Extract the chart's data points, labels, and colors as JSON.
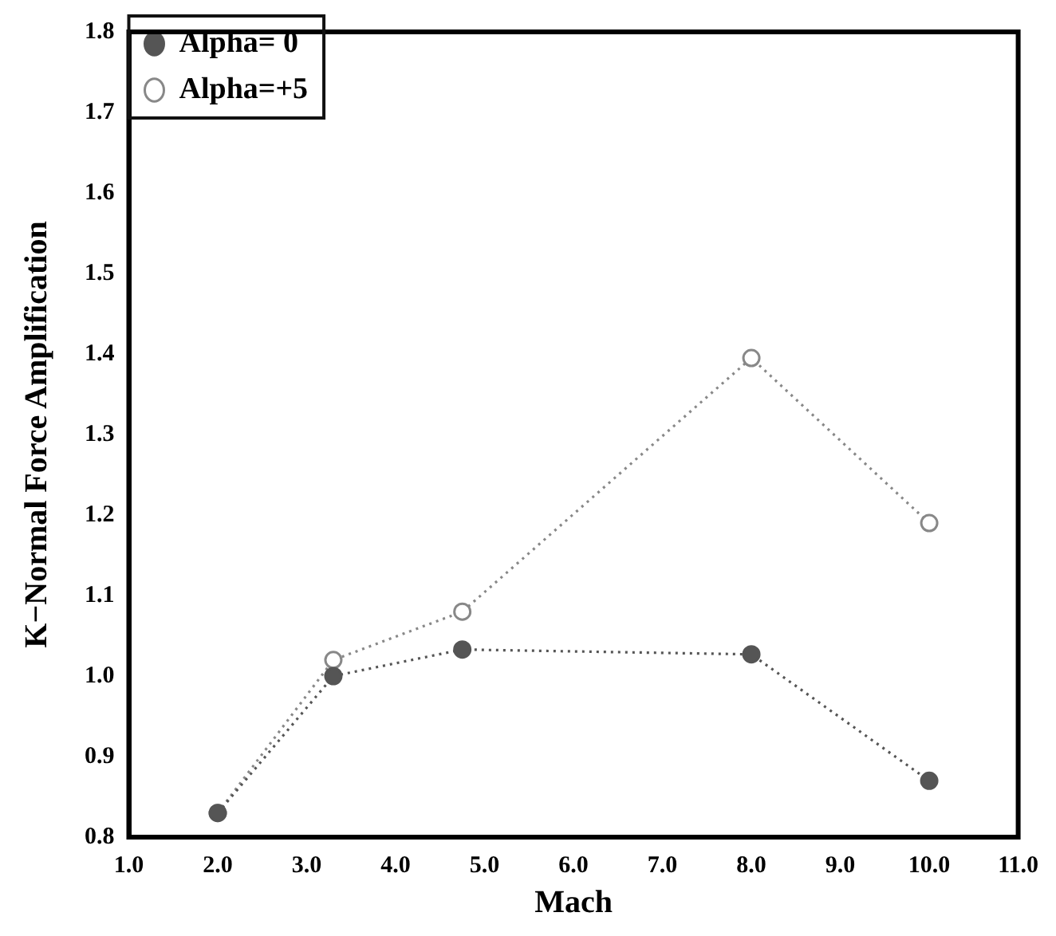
{
  "chart_data": {
    "type": "line",
    "xlabel": "Mach",
    "ylabel": "K−Normal Force Amplification",
    "xlim": [
      1.0,
      11.0
    ],
    "xticks": [
      {
        "value": 1,
        "label": "1.0"
      },
      {
        "value": 2,
        "label": "2.0"
      },
      {
        "value": 3,
        "label": "3.0"
      },
      {
        "value": 4,
        "label": "4.0"
      },
      {
        "value": 5,
        "label": "5.0"
      },
      {
        "value": 6,
        "label": "6.0"
      },
      {
        "value": 7,
        "label": "7.0"
      },
      {
        "value": 8,
        "label": "8.0"
      },
      {
        "value": 9,
        "label": "9.0"
      },
      {
        "value": 10,
        "label": "10.0"
      },
      {
        "value": 11,
        "label": "11.0"
      }
    ],
    "ylim": [
      0.8,
      1.8
    ],
    "yticks": [
      0.8,
      0.9,
      {
        "value": 1,
        "label": "1.0"
      },
      1.1,
      1.2,
      1.3,
      1.4,
      1.5,
      1.6,
      1.7,
      1.8
    ],
    "grid": false,
    "legend": "top left",
    "marker": "circle",
    "line_style": "dotted",
    "series": [
      {
        "name": "Alpha= 0",
        "color": "#555555",
        "x": [
          2.0,
          3.3,
          4.75,
          8.0,
          10.0
        ],
        "values": [
          0.83,
          1.0,
          1.033,
          1.027,
          0.87
        ]
      },
      {
        "name": "Alpha=+5",
        "color": "#888888",
        "x": [
          2.0,
          3.3,
          4.75,
          8.0,
          10.0
        ],
        "values": [
          0.83,
          1.02,
          1.08,
          1.395,
          1.19
        ]
      }
    ]
  }
}
